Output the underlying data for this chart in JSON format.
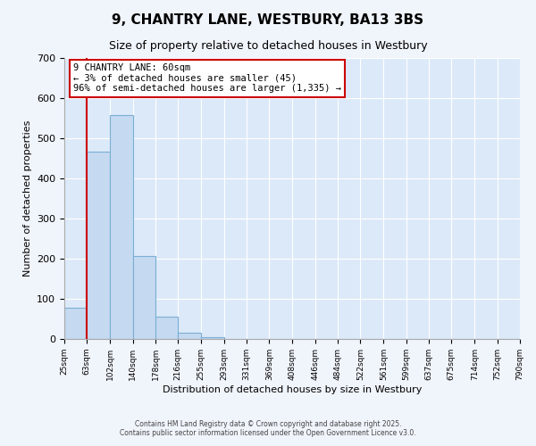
{
  "title": "9, CHANTRY LANE, WESTBURY, BA13 3BS",
  "subtitle": "Size of property relative to detached houses in Westbury",
  "xlabel": "Distribution of detached houses by size in Westbury",
  "ylabel": "Number of detached properties",
  "bar_color": "#c5d9f1",
  "bar_edge_color": "#7bafd4",
  "background_color": "#dce9f8",
  "grid_color": "#ffffff",
  "bin_edges": [
    25,
    63,
    102,
    140,
    178,
    216,
    255,
    293,
    331,
    369,
    408,
    446,
    484,
    522,
    561,
    599,
    637,
    675,
    714,
    752,
    790
  ],
  "bin_labels": [
    "25sqm",
    "63sqm",
    "102sqm",
    "140sqm",
    "178sqm",
    "216sqm",
    "255sqm",
    "293sqm",
    "331sqm",
    "369sqm",
    "408sqm",
    "446sqm",
    "484sqm",
    "522sqm",
    "561sqm",
    "599sqm",
    "637sqm",
    "675sqm",
    "714sqm",
    "752sqm",
    "790sqm"
  ],
  "counts": [
    78,
    467,
    558,
    207,
    56,
    15,
    5,
    1,
    0,
    0,
    0,
    0,
    0,
    0,
    0,
    0,
    0,
    0,
    0,
    1
  ],
  "property_line_x": 63,
  "property_line_color": "#cc0000",
  "annotation_text_line1": "9 CHANTRY LANE: 60sqm",
  "annotation_text_line2": "← 3% of detached houses are smaller (45)",
  "annotation_text_line3": "96% of semi-detached houses are larger (1,335) →",
  "annotation_box_color": "#ffffff",
  "annotation_box_edge_color": "#cc0000",
  "ylim": [
    0,
    700
  ],
  "yticks": [
    0,
    100,
    200,
    300,
    400,
    500,
    600,
    700
  ],
  "footer1": "Contains HM Land Registry data © Crown copyright and database right 2025.",
  "footer2": "Contains public sector information licensed under the Open Government Licence v3.0."
}
